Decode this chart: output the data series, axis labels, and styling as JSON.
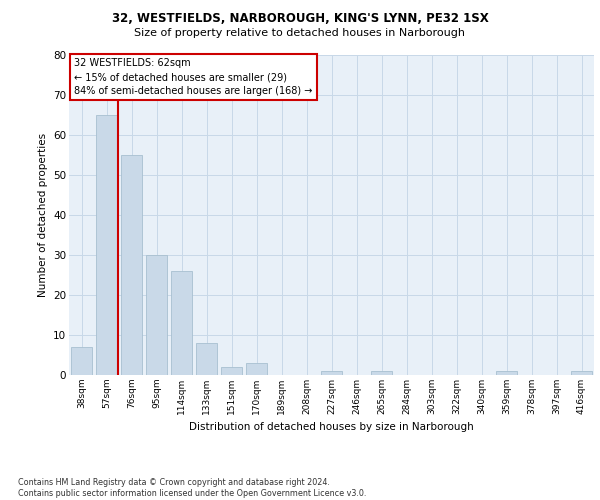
{
  "title1": "32, WESTFIELDS, NARBOROUGH, KING'S LYNN, PE32 1SX",
  "title2": "Size of property relative to detached houses in Narborough",
  "xlabel": "Distribution of detached houses by size in Narborough",
  "ylabel": "Number of detached properties",
  "bin_labels": [
    "38sqm",
    "57sqm",
    "76sqm",
    "95sqm",
    "114sqm",
    "133sqm",
    "151sqm",
    "170sqm",
    "189sqm",
    "208sqm",
    "227sqm",
    "246sqm",
    "265sqm",
    "284sqm",
    "303sqm",
    "322sqm",
    "340sqm",
    "359sqm",
    "378sqm",
    "397sqm",
    "416sqm"
  ],
  "bar_values": [
    7,
    65,
    55,
    30,
    26,
    8,
    2,
    3,
    0,
    0,
    1,
    0,
    1,
    0,
    0,
    0,
    0,
    1,
    0,
    0,
    1
  ],
  "bar_color": "#c9d9e8",
  "bar_edge_color": "#a8c0d0",
  "background_color": "#e8f0f8",
  "redline_x": 1.45,
  "annotation_text": "32 WESTFIELDS: 62sqm\n← 15% of detached houses are smaller (29)\n84% of semi-detached houses are larger (168) →",
  "annotation_box_color": "#ffffff",
  "annotation_box_edge": "#cc0000",
  "footer_text": "Contains HM Land Registry data © Crown copyright and database right 2024.\nContains public sector information licensed under the Open Government Licence v3.0.",
  "ylim": [
    0,
    80
  ],
  "yticks": [
    0,
    10,
    20,
    30,
    40,
    50,
    60,
    70,
    80
  ]
}
